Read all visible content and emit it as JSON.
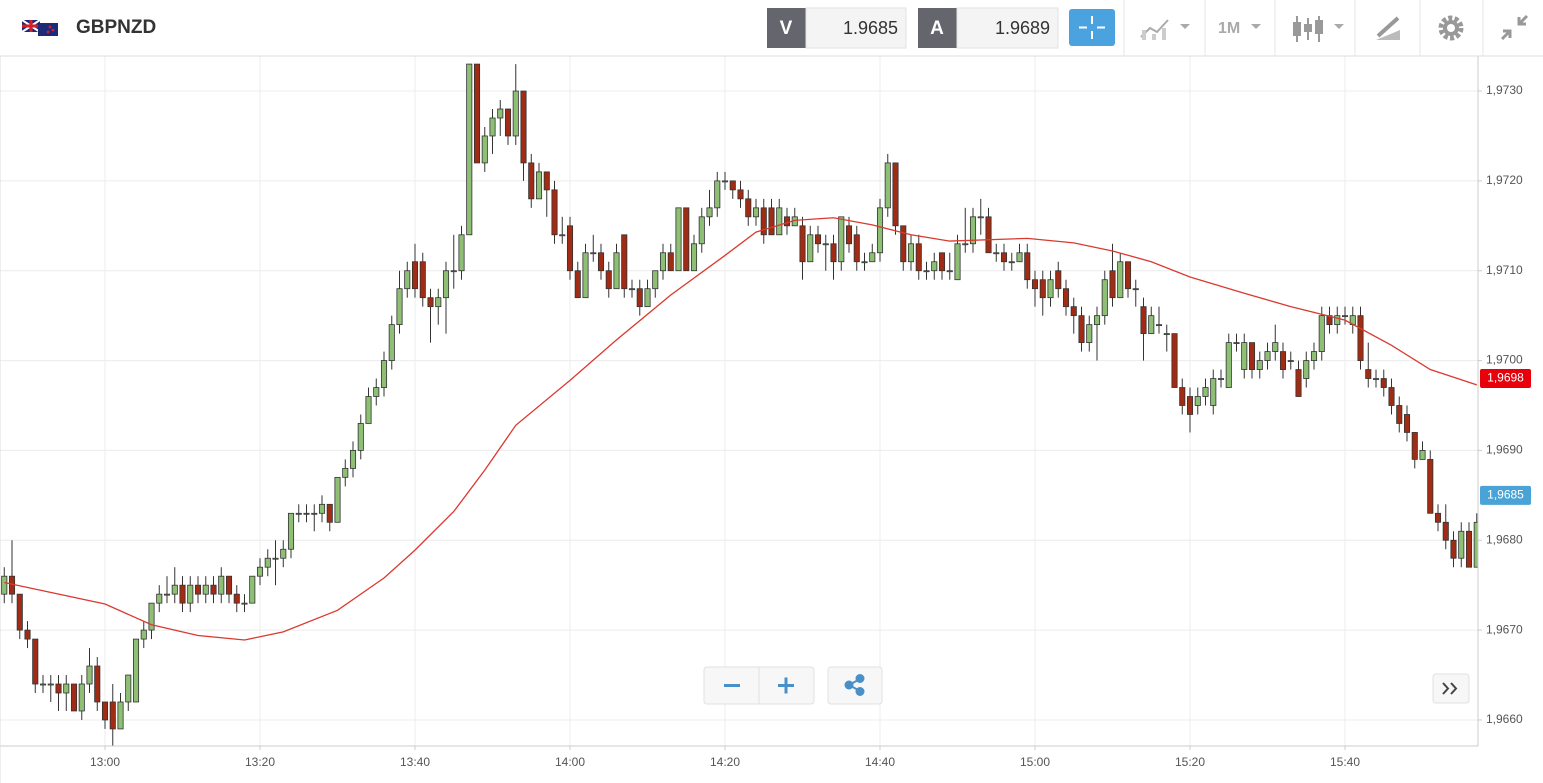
{
  "header": {
    "symbol": "GBPNZD",
    "bid_label": "V",
    "bid": 1.9685,
    "ask_label": "A",
    "ask": 1.9689,
    "timeframe": "1M"
  },
  "chart_data": {
    "type": "candlestick",
    "x": [
      767,
      768,
      769,
      770,
      771,
      772,
      773,
      774,
      775,
      776,
      777,
      778,
      779,
      780,
      781,
      782,
      783,
      784,
      785,
      786,
      787,
      788,
      789,
      790,
      791,
      792,
      793,
      794,
      795,
      796,
      797,
      798,
      799,
      800,
      801,
      802,
      803,
      804,
      805,
      806,
      807,
      808,
      809,
      810,
      811,
      812,
      813,
      814,
      815,
      816,
      817,
      818,
      819,
      820,
      821,
      822,
      823,
      824,
      825,
      826,
      827,
      828,
      829,
      830,
      831,
      832,
      833,
      834,
      835,
      836,
      837,
      838,
      839,
      840,
      841,
      842,
      843,
      844,
      845,
      846,
      847,
      848,
      849,
      850,
      851,
      852,
      853,
      854,
      855,
      856,
      857,
      858,
      859,
      860,
      861,
      862,
      863,
      864,
      865,
      866,
      867,
      868,
      869,
      870,
      871,
      872,
      873,
      874,
      875,
      876,
      877,
      878,
      879,
      880,
      881,
      882,
      883,
      884,
      885,
      886,
      887,
      888,
      889,
      890,
      891,
      892,
      893,
      894,
      895,
      896,
      897,
      898,
      899,
      900,
      901,
      902,
      903,
      904,
      905,
      906,
      907,
      908,
      909,
      910,
      911,
      912,
      913,
      914,
      915,
      916,
      917,
      918,
      919,
      920,
      921,
      922,
      923,
      924,
      925,
      926,
      927,
      928,
      929,
      930,
      931,
      932,
      933,
      934,
      935,
      936,
      937,
      938,
      939,
      940,
      941,
      942,
      943,
      944,
      945,
      946,
      947,
      948,
      949,
      950,
      951,
      952,
      953,
      954,
      955,
      956,
      957
    ],
    "open": [
      1.9674,
      1.9676,
      1.9674,
      1.967,
      1.9669,
      1.9664,
      1.9664,
      1.9664,
      1.9663,
      1.9664,
      1.9661,
      1.9664,
      1.9666,
      1.9662,
      1.9662,
      1.9659,
      1.9662,
      1.9662,
      1.9669,
      1.967,
      1.9673,
      1.9674,
      1.9674,
      1.9675,
      1.9673,
      1.9675,
      1.9674,
      1.9675,
      1.9674,
      1.9676,
      1.9674,
      1.9673,
      1.9673,
      1.9676,
      1.9677,
      1.9678,
      1.9678,
      1.9679,
      1.9683,
      1.9683,
      1.9683,
      1.9683,
      1.9684,
      1.9682,
      1.9687,
      1.9688,
      1.969,
      1.9693,
      1.9696,
      1.9697,
      1.97,
      1.9704,
      1.9708,
      1.9711,
      1.9711,
      1.9707,
      1.9706,
      1.9707,
      1.971,
      1.971,
      1.9714,
      1.9733,
      1.9722,
      1.9725,
      1.9727,
      1.9728,
      1.9725,
      1.973,
      1.9722,
      1.9718,
      1.9721,
      1.9719,
      1.9714,
      1.9715,
      1.971,
      1.9707,
      1.9712,
      1.9712,
      1.971,
      1.9708,
      1.9714,
      1.9708,
      1.9708,
      1.9706,
      1.9708,
      1.971,
      1.9712,
      1.971,
      1.9717,
      1.971,
      1.9713,
      1.9716,
      1.9717,
      1.972,
      1.972,
      1.9719,
      1.9718,
      1.9716,
      1.9717,
      1.9717,
      1.9714,
      1.9716,
      1.9715,
      1.9715,
      1.9711,
      1.9714,
      1.9713,
      1.9713,
      1.9711,
      1.9715,
      1.9714,
      1.9711,
      1.9711,
      1.9712,
      1.9717,
      1.9722,
      1.9715,
      1.9711,
      1.9713,
      1.971,
      1.971,
      1.9712,
      1.971,
      1.9709,
      1.9713,
      1.9713,
      1.9716,
      1.9716,
      1.9712,
      1.9712,
      1.9711,
      1.9711,
      1.9712,
      1.9709,
      1.9709,
      1.9707,
      1.971,
      1.9708,
      1.9706,
      1.9705,
      1.9702,
      1.9704,
      1.9705,
      1.971,
      1.9707,
      1.9711,
      1.9708,
      1.9706,
      1.9703,
      1.9704,
      1.9703,
      1.9703,
      1.9697,
      1.9696,
      1.9695,
      1.9696,
      1.9695,
      1.9698,
      1.9697,
      1.9702,
      1.9699,
      1.9702,
      1.9699,
      1.97,
      1.9701,
      1.9701,
      1.97,
      1.9699,
      1.9698,
      1.97,
      1.9701,
      1.9705,
      1.9704,
      1.9705,
      1.9704,
      1.9705,
      1.9699,
      1.9698,
      1.9698,
      1.9697,
      1.9695,
      1.9694,
      1.9692,
      1.9689,
      1.9689,
      1.9683,
      1.9682,
      1.968,
      1.9678,
      1.9681,
      1.9677
    ],
    "high": [
      1.9677,
      1.968,
      1.9674,
      1.9671,
      1.9669,
      1.9665,
      1.9665,
      1.9665,
      1.9665,
      1.9664,
      1.9665,
      1.9668,
      1.9667,
      1.9662,
      1.9664,
      1.9663,
      1.9665,
      1.9669,
      1.9671,
      1.9673,
      1.9675,
      1.9676,
      1.9677,
      1.9676,
      1.9676,
      1.9676,
      1.9676,
      1.9676,
      1.9677,
      1.9676,
      1.9675,
      1.9674,
      1.9676,
      1.9678,
      1.9679,
      1.968,
      1.968,
      1.9683,
      1.9684,
      1.9684,
      1.9684,
      1.9685,
      1.9684,
      1.9687,
      1.9689,
      1.9691,
      1.9694,
      1.9697,
      1.9698,
      1.9701,
      1.9705,
      1.971,
      1.9711,
      1.9713,
      1.9712,
      1.9708,
      1.9708,
      1.9711,
      1.9714,
      1.9715,
      1.9733,
      1.9733,
      1.9726,
      1.9728,
      1.9729,
      1.9728,
      1.9733,
      1.973,
      1.9723,
      1.9722,
      1.9721,
      1.972,
      1.9716,
      1.9716,
      1.9711,
      1.9713,
      1.9714,
      1.9713,
      1.9711,
      1.9713,
      1.9714,
      1.9709,
      1.9709,
      1.9709,
      1.971,
      1.9713,
      1.9713,
      1.9717,
      1.9717,
      1.9714,
      1.9717,
      1.9719,
      1.9721,
      1.9721,
      1.972,
      1.972,
      1.9719,
      1.9718,
      1.9718,
      1.9718,
      1.9718,
      1.9717,
      1.9717,
      1.9716,
      1.9715,
      1.9715,
      1.9714,
      1.9714,
      1.9716,
      1.9716,
      1.9715,
      1.9712,
      1.9713,
      1.9718,
      1.9723,
      1.9722,
      1.9715,
      1.9714,
      1.9714,
      1.9711,
      1.9712,
      1.9712,
      1.9712,
      1.9714,
      1.9717,
      1.9717,
      1.9718,
      1.9717,
      1.9713,
      1.9713,
      1.9712,
      1.9713,
      1.9713,
      1.971,
      1.971,
      1.971,
      1.9711,
      1.9709,
      1.9707,
      1.9706,
      1.9705,
      1.9706,
      1.971,
      1.9713,
      1.9712,
      1.9711,
      1.9709,
      1.9707,
      1.9706,
      1.9706,
      1.9704,
      1.9703,
      1.9698,
      1.9697,
      1.9697,
      1.9698,
      1.9699,
      1.9699,
      1.9703,
      1.9703,
      1.9703,
      1.9702,
      1.9701,
      1.9702,
      1.9704,
      1.9702,
      1.9701,
      1.97,
      1.9701,
      1.9702,
      1.9706,
      1.9706,
      1.9706,
      1.9706,
      1.9706,
      1.9706,
      1.9702,
      1.9699,
      1.9699,
      1.9698,
      1.9696,
      1.9695,
      1.9692,
      1.9691,
      1.969,
      1.9684,
      1.9684,
      1.9681,
      1.9682,
      1.9682,
      1.9683
    ],
    "low": [
      1.9673,
      1.9673,
      1.9669,
      1.9668,
      1.9663,
      1.9663,
      1.9662,
      1.9661,
      1.9661,
      1.9661,
      1.966,
      1.9663,
      1.9661,
      1.9659,
      1.9657,
      1.9659,
      1.9661,
      1.9662,
      1.9668,
      1.9669,
      1.9672,
      1.9673,
      1.9673,
      1.9672,
      1.9672,
      1.9673,
      1.9673,
      1.9673,
      1.9673,
      1.9673,
      1.9672,
      1.9672,
      1.9673,
      1.9675,
      1.9676,
      1.9675,
      1.9677,
      1.9678,
      1.9682,
      1.9682,
      1.9681,
      1.9682,
      1.9681,
      1.9682,
      1.9686,
      1.9687,
      1.9689,
      1.9693,
      1.9695,
      1.9696,
      1.9699,
      1.9703,
      1.9707,
      1.9707,
      1.9706,
      1.9702,
      1.9704,
      1.9703,
      1.9708,
      1.9709,
      1.9714,
      1.9722,
      1.9721,
      1.9723,
      1.9725,
      1.9724,
      1.9724,
      1.972,
      1.9717,
      1.9718,
      1.9716,
      1.9713,
      1.9713,
      1.9709,
      1.9707,
      1.9707,
      1.9711,
      1.9709,
      1.9707,
      1.9708,
      1.9707,
      1.9707,
      1.9705,
      1.9706,
      1.9707,
      1.9709,
      1.971,
      1.971,
      1.971,
      1.971,
      1.9712,
      1.9715,
      1.9716,
      1.9719,
      1.9718,
      1.9717,
      1.9715,
      1.9715,
      1.9713,
      1.9714,
      1.9714,
      1.9714,
      1.9715,
      1.9709,
      1.9711,
      1.9712,
      1.971,
      1.9709,
      1.971,
      1.9712,
      1.971,
      1.971,
      1.9711,
      1.9711,
      1.9716,
      1.9714,
      1.971,
      1.971,
      1.9709,
      1.9709,
      1.9709,
      1.9709,
      1.9709,
      1.9709,
      1.9712,
      1.9712,
      1.9714,
      1.9712,
      1.9711,
      1.971,
      1.971,
      1.9711,
      1.9708,
      1.9706,
      1.9705,
      1.9706,
      1.9707,
      1.9705,
      1.9703,
      1.9701,
      1.9701,
      1.97,
      1.9704,
      1.9706,
      1.9707,
      1.9707,
      1.9706,
      1.97,
      1.9703,
      1.9703,
      1.9701,
      1.9697,
      1.9694,
      1.9692,
      1.9694,
      1.9695,
      1.9694,
      1.9697,
      1.9697,
      1.9701,
      1.9698,
      1.9698,
      1.9698,
      1.9699,
      1.97,
      1.9698,
      1.9699,
      1.9696,
      1.9697,
      1.9699,
      1.97,
      1.9703,
      1.9703,
      1.9704,
      1.9703,
      1.9699,
      1.9697,
      1.9697,
      1.9696,
      1.9694,
      1.9692,
      1.9691,
      1.9688,
      1.9689,
      1.9683,
      1.9681,
      1.9679,
      1.9677,
      1.9677,
      1.9677,
      1.9677
    ],
    "close": [
      1.9676,
      1.9674,
      1.967,
      1.9669,
      1.9664,
      1.9664,
      1.9664,
      1.9663,
      1.9664,
      1.9661,
      1.9664,
      1.9666,
      1.9662,
      1.966,
      1.9659,
      1.9662,
      1.9665,
      1.9669,
      1.967,
      1.9673,
      1.9674,
      1.9674,
      1.9675,
      1.9673,
      1.9675,
      1.9674,
      1.9675,
      1.9674,
      1.9676,
      1.9674,
      1.9673,
      1.9673,
      1.9676,
      1.9677,
      1.9678,
      1.9678,
      1.9679,
      1.9683,
      1.9683,
      1.9683,
      1.9683,
      1.9684,
      1.9682,
      1.9687,
      1.9688,
      1.969,
      1.9693,
      1.9696,
      1.9697,
      1.97,
      1.9704,
      1.9708,
      1.971,
      1.9708,
      1.9707,
      1.9706,
      1.9707,
      1.971,
      1.971,
      1.9714,
      1.9733,
      1.9722,
      1.9725,
      1.9727,
      1.9728,
      1.9725,
      1.973,
      1.9722,
      1.9718,
      1.9721,
      1.9719,
      1.9714,
      1.9714,
      1.971,
      1.9707,
      1.9712,
      1.9712,
      1.971,
      1.9708,
      1.9712,
      1.9708,
      1.9708,
      1.9706,
      1.9708,
      1.971,
      1.9712,
      1.971,
      1.9717,
      1.971,
      1.9713,
      1.9716,
      1.9717,
      1.972,
      1.972,
      1.9719,
      1.9718,
      1.9716,
      1.9717,
      1.9714,
      1.9714,
      1.9717,
      1.9715,
      1.9716,
      1.9711,
      1.9714,
      1.9713,
      1.9713,
      1.9711,
      1.9716,
      1.9713,
      1.9711,
      1.9711,
      1.9712,
      1.9717,
      1.9722,
      1.9715,
      1.9711,
      1.9713,
      1.971,
      1.971,
      1.9711,
      1.971,
      1.971,
      1.9713,
      1.9713,
      1.9716,
      1.9716,
      1.9712,
      1.9712,
      1.9711,
      1.9711,
      1.9712,
      1.9709,
      1.9708,
      1.9707,
      1.9709,
      1.9708,
      1.9706,
      1.9705,
      1.9702,
      1.9704,
      1.9705,
      1.9709,
      1.9707,
      1.9711,
      1.9708,
      1.9708,
      1.9703,
      1.9705,
      1.9704,
      1.9703,
      1.9697,
      1.9695,
      1.9694,
      1.9696,
      1.9697,
      1.9698,
      1.9698,
      1.9702,
      1.9702,
      1.9702,
      1.9699,
      1.97,
      1.9701,
      1.9702,
      1.9699,
      1.97,
      1.9696,
      1.97,
      1.9701,
      1.9705,
      1.9704,
      1.9705,
      1.9705,
      1.9705,
      1.97,
      1.9698,
      1.9698,
      1.9697,
      1.9695,
      1.9693,
      1.9692,
      1.9689,
      1.969,
      1.9683,
      1.9682,
      1.968,
      1.9678,
      1.9681,
      1.9677,
      1.9682
    ],
    "up_color": "#8dbf74",
    "down_color": "#a02c15",
    "moving_average": {
      "color": "#d93a30",
      "x": [
        767,
        780,
        786,
        792,
        798,
        803,
        810,
        816,
        820,
        825,
        829,
        833,
        840,
        846,
        853,
        860,
        864,
        869,
        874,
        879,
        884,
        889,
        899,
        905,
        910,
        915,
        920,
        927,
        933,
        940,
        946,
        951,
        957
      ],
      "values": [
        1.96753,
        1.96729,
        1.96706,
        1.96694,
        1.96689,
        1.96698,
        1.96722,
        1.96758,
        1.96789,
        1.96832,
        1.96878,
        1.96928,
        1.96978,
        1.97023,
        1.97073,
        1.97117,
        1.97143,
        1.97156,
        1.97159,
        1.97151,
        1.9714,
        1.97133,
        1.97136,
        1.97131,
        1.97122,
        1.9711,
        1.97093,
        1.97075,
        1.9706,
        1.97045,
        1.97017,
        1.9699,
        1.96973
      ]
    },
    "price_markers": [
      {
        "value": 1.9698,
        "label": "1,9698",
        "color": "#e8000b"
      },
      {
        "value": 1.9685,
        "label": "1,9685",
        "color": "#4aa3d6"
      }
    ],
    "xlim": [
      766.45,
      957.16
    ],
    "xticks": [
      {
        "value": 780,
        "label": "13:00"
      },
      {
        "value": 800,
        "label": "13:20"
      },
      {
        "value": 820,
        "label": "13:40"
      },
      {
        "value": 840,
        "label": "14:00"
      },
      {
        "value": 860,
        "label": "14:20"
      },
      {
        "value": 880,
        "label": "14:40"
      },
      {
        "value": 900,
        "label": "15:00"
      },
      {
        "value": 920,
        "label": "15:20"
      },
      {
        "value": 940,
        "label": "15:40"
      }
    ],
    "ylim": [
      1.96571,
      1.97339
    ],
    "yticks": [
      {
        "value": 1.966,
        "label": "1,9660"
      },
      {
        "value": 1.967,
        "label": "1,9670"
      },
      {
        "value": 1.968,
        "label": "1,9680"
      },
      {
        "value": 1.969,
        "label": "1,9690"
      },
      {
        "value": 1.97,
        "label": "1,9700"
      },
      {
        "value": 1.971,
        "label": "1,9710"
      },
      {
        "value": 1.972,
        "label": "1,9720"
      },
      {
        "value": 1.973,
        "label": "1,9730"
      }
    ],
    "grid": true
  }
}
